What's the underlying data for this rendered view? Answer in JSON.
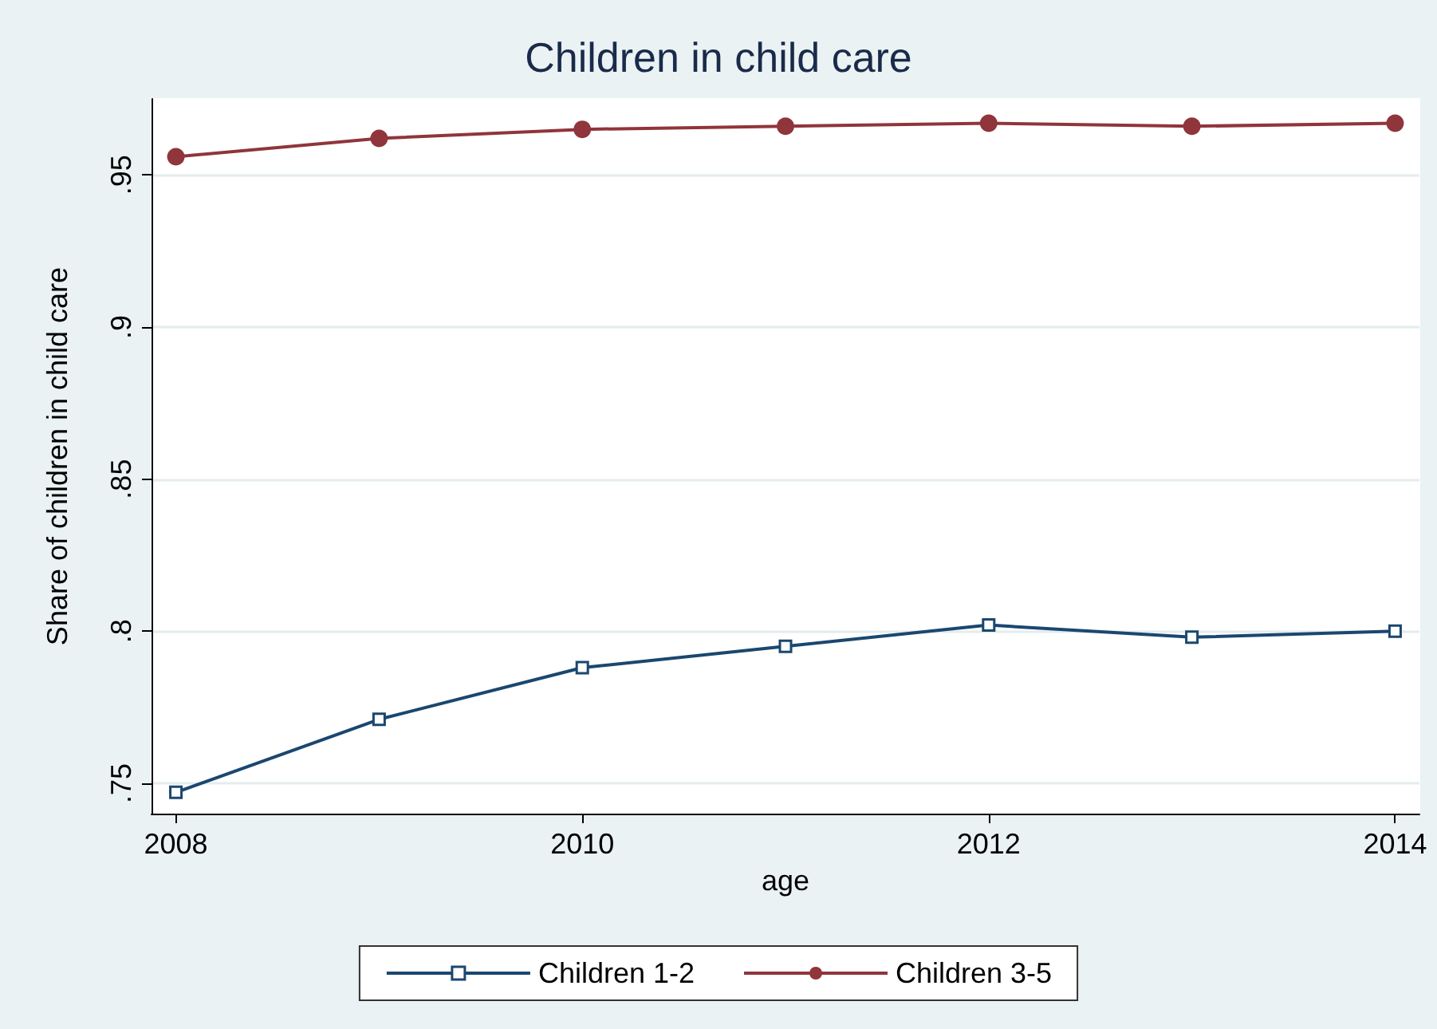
{
  "chart_data": {
    "type": "line",
    "title": "Children in child care",
    "xlabel": "age",
    "ylabel": "Share of children in child care",
    "x": [
      2008,
      2009,
      2010,
      2011,
      2012,
      2013,
      2014
    ],
    "series": [
      {
        "name": "Children 1-2",
        "color": "#1a476f",
        "marker": "square",
        "values": [
          0.747,
          0.771,
          0.788,
          0.795,
          0.802,
          0.798,
          0.8
        ]
      },
      {
        "name": "Children 3-5",
        "color": "#90353b",
        "marker": "circle",
        "values": [
          0.956,
          0.962,
          0.965,
          0.966,
          0.967,
          0.966,
          0.967
        ]
      }
    ],
    "xlim": [
      2007.88,
      2014.12
    ],
    "xticks": [
      2008,
      2010,
      2012,
      2014
    ],
    "ylim": [
      0.74,
      0.975
    ],
    "yticks": [
      {
        "value": 0.75,
        "label": ".75"
      },
      {
        "value": 0.8,
        "label": ".8"
      },
      {
        "value": 0.85,
        "label": ".85"
      },
      {
        "value": 0.9,
        "label": ".9"
      },
      {
        "value": 0.95,
        "label": ".95"
      }
    ],
    "grid": "y",
    "legend": "bottom",
    "line_style": "solid"
  }
}
